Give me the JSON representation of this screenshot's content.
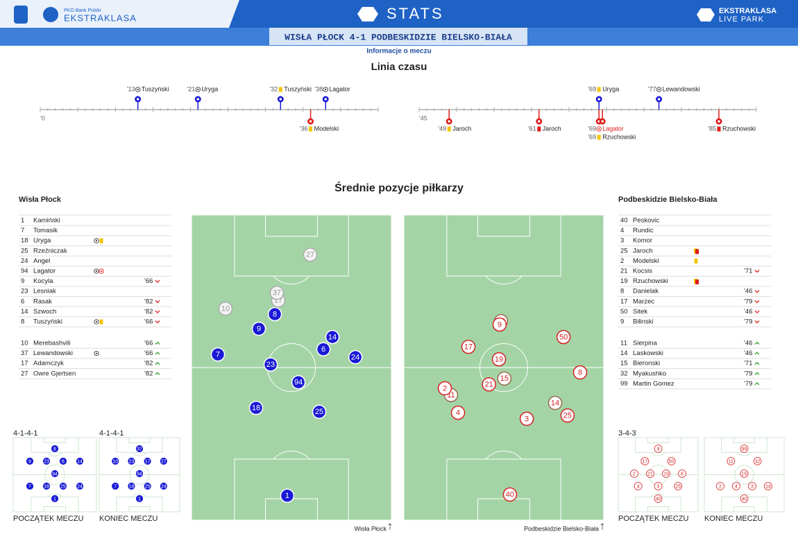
{
  "header": {
    "bank": "PKO Bank Polski",
    "league": "EKSTRAKLASA",
    "section": "STATS",
    "park_league": "EKSTRAKLASA",
    "park": "LIVE PARK",
    "match": "WISŁA PŁOCK 4-1 PODBESKIDZIE BIELSKO-BIAŁA",
    "info": "Informacje o meczu"
  },
  "timeline": {
    "title": "Linia czasu",
    "colors": {
      "home": "#1a1ad6",
      "away": "#e01b1b"
    },
    "halves": [
      {
        "start_label": "'0",
        "range": [
          0,
          45
        ],
        "events": [
          {
            "minute": {
              "value": 13,
              "label": "'13"
            },
            "player": "Tuszyński",
            "icon": "goal",
            "side": "home"
          },
          {
            "minute": {
              "value": 21,
              "label": "'21"
            },
            "player": "Uryga",
            "icon": "goal",
            "side": "home"
          },
          {
            "minute": {
              "value": 32,
              "label": "'32"
            },
            "player": "Tuszyński",
            "icon": "yellow",
            "side": "home"
          },
          {
            "minute": {
              "value": 38,
              "label": "'38"
            },
            "player": "Lagator",
            "icon": "goal",
            "side": "home"
          },
          {
            "minute": {
              "value": 36,
              "label": "'36"
            },
            "player": "Modelski",
            "icon": "yellow",
            "side": "away"
          }
        ]
      },
      {
        "start_label": "'45",
        "range": [
          45,
          90
        ],
        "events": [
          {
            "minute": {
              "value": 69,
              "label": "'69"
            },
            "player": "Uryga",
            "icon": "yellow",
            "side": "home"
          },
          {
            "minute": {
              "value": 77,
              "label": "'77"
            },
            "player": "Lewandowski",
            "icon": "goal",
            "side": "home"
          },
          {
            "minute": {
              "value": 49,
              "label": "'49"
            },
            "player": "Jaroch",
            "icon": "yellow",
            "side": "away"
          },
          {
            "minute": {
              "value": 61,
              "label": "'61"
            },
            "player": "Jaroch",
            "icon": "red",
            "side": "away"
          },
          {
            "minute": {
              "value": 69,
              "label": "'69"
            },
            "player": "Lagator",
            "icon": "own-goal",
            "side": "away"
          },
          {
            "minute": {
              "value": 69,
              "label": "'69"
            },
            "player": "Rzuchowski",
            "icon": "yellow",
            "side": "away"
          },
          {
            "minute": {
              "value": 85,
              "label": "'85"
            },
            "player": "Rzuchowski",
            "icon": "red",
            "side": "away"
          }
        ]
      }
    ]
  },
  "positions": {
    "title": "Średnie pozycje piłkarzy",
    "teams": [
      {
        "name": "Wisła Płock",
        "footer": "Wisła Płock",
        "color": "#1a1ad6",
        "starters": [
          {
            "number": 1,
            "name": "Kamiński"
          },
          {
            "number": 7,
            "name": "Tomasik"
          },
          {
            "number": 18,
            "name": "Uryga",
            "icons": [
              "goal",
              "yellow"
            ]
          },
          {
            "number": 25,
            "name": "Rzeźniczak"
          },
          {
            "number": 24,
            "name": "Angel"
          },
          {
            "number": 94,
            "name": "Lagator",
            "icons": [
              "goal",
              "own-goal"
            ]
          },
          {
            "number": 9,
            "name": "Kocyla",
            "sub": "'66",
            "dir": "out"
          },
          {
            "number": 23,
            "name": "Lesniak"
          },
          {
            "number": 6,
            "name": "Rasak",
            "sub": "'82",
            "dir": "out"
          },
          {
            "number": 14,
            "name": "Szwoch",
            "sub": "'82",
            "dir": "out"
          },
          {
            "number": 8,
            "name": "Tuszyński",
            "icons": [
              "goal",
              "yellow"
            ],
            "sub": "'66",
            "dir": "out"
          }
        ],
        "subs": [
          {
            "number": 10,
            "name": "Merebashvili",
            "sub": "'66",
            "dir": "in"
          },
          {
            "number": 37,
            "name": "Lewandowski",
            "icons": [
              "goal"
            ],
            "sub": "'66",
            "dir": "in"
          },
          {
            "number": 17,
            "name": "Adamczyk",
            "sub": "'82",
            "dir": "in"
          },
          {
            "number": 27,
            "name": "Owre Gjertsen",
            "sub": "'82",
            "dir": "in"
          }
        ],
        "players": [
          {
            "number": 27,
            "x": 59.4,
            "y": 13
          },
          {
            "number": 17,
            "x": 43.4,
            "y": 28
          },
          {
            "number": 37,
            "x": 42.7,
            "y": 25.5
          },
          {
            "number": 10,
            "x": 17,
            "y": 30.7
          },
          {
            "number": 8,
            "x": 41.7,
            "y": 32.5
          },
          {
            "number": 9,
            "x": 33.7,
            "y": 37.3
          },
          {
            "number": 14,
            "x": 70.5,
            "y": 40
          },
          {
            "number": 6,
            "x": 66,
            "y": 44
          },
          {
            "number": 7,
            "x": 13.2,
            "y": 45.7
          },
          {
            "number": 24,
            "x": 82,
            "y": 46.6
          },
          {
            "number": 23,
            "x": 39.6,
            "y": 49
          },
          {
            "number": 94,
            "x": 53.5,
            "y": 54.8
          },
          {
            "number": 18,
            "x": 32.3,
            "y": 63.2
          },
          {
            "number": 25,
            "x": 63.9,
            "y": 64.5
          },
          {
            "number": 1,
            "x": 47.9,
            "y": 92
          }
        ],
        "lineups": [
          {
            "formation": "4-1-4-1",
            "caption": "POCZĄTEK MECZU",
            "rows": [
              [
                8
              ],
              [
                9,
                23,
                6,
                14
              ],
              [
                94
              ],
              [
                7,
                18,
                25,
                24
              ],
              [
                1
              ]
            ]
          },
          {
            "formation": "4-1-4-1",
            "caption": "KONIEC MECZU",
            "rows": [
              [
                37
              ],
              [
                10,
                23,
                17,
                27
              ],
              [
                94
              ],
              [
                7,
                18,
                25,
                24
              ],
              [
                1
              ]
            ]
          }
        ]
      },
      {
        "name": "Podbeskidzie Bielsko-Biała",
        "footer": "Podbeskidzie Bielsko-Biała",
        "color": "#d42020",
        "starters": [
          {
            "number": 40,
            "name": "Peskovic"
          },
          {
            "number": 4,
            "name": "Rundic"
          },
          {
            "number": 3,
            "name": "Komor"
          },
          {
            "number": 25,
            "name": "Jaroch",
            "icons": [
              "second-yellow"
            ]
          },
          {
            "number": 2,
            "name": "Modelski",
            "icons": [
              "yellow"
            ]
          },
          {
            "number": 21,
            "name": "Kocsis",
            "sub": "'71",
            "dir": "out"
          },
          {
            "number": 19,
            "name": "Rzuchowski",
            "icons": [
              "second-yellow"
            ]
          },
          {
            "number": 8,
            "name": "Danielak",
            "sub": "'46",
            "dir": "out"
          },
          {
            "number": 17,
            "name": "Marzec",
            "sub": "'79",
            "dir": "out"
          },
          {
            "number": 50,
            "name": "Sitek",
            "sub": "'46",
            "dir": "out"
          },
          {
            "number": 9,
            "name": "Bilinski",
            "sub": "'79",
            "dir": "out"
          }
        ],
        "subs": [
          {
            "number": 11,
            "name": "Sierpina",
            "sub": "'46",
            "dir": "in"
          },
          {
            "number": 14,
            "name": "Laskowski",
            "sub": "'46",
            "dir": "in"
          },
          {
            "number": 15,
            "name": "Bieronski",
            "sub": "'71",
            "dir": "in"
          },
          {
            "number": 32,
            "name": "Myakushko",
            "sub": "'79",
            "dir": "in"
          },
          {
            "number": 99,
            "name": "Martin Gomez",
            "sub": "'79",
            "dir": "in"
          }
        ],
        "players": [
          {
            "number": 32,
            "x": 48.6,
            "y": 34.8
          },
          {
            "number": 9,
            "x": 47.9,
            "y": 35.9
          },
          {
            "number": 50,
            "x": 79.9,
            "y": 40
          },
          {
            "number": 17,
            "x": 32.3,
            "y": 43.2
          },
          {
            "number": 19,
            "x": 47.6,
            "y": 47.3
          },
          {
            "number": 8,
            "x": 88.2,
            "y": 51.6
          },
          {
            "number": 15,
            "x": 50.3,
            "y": 53.6
          },
          {
            "number": 21,
            "x": 42.6,
            "y": 55.5
          },
          {
            "number": 11,
            "x": 23.6,
            "y": 59
          },
          {
            "number": 2,
            "x": 20.5,
            "y": 56.8
          },
          {
            "number": 14,
            "x": 75.7,
            "y": 61.6
          },
          {
            "number": 4,
            "x": 27.1,
            "y": 64.8
          },
          {
            "number": 25,
            "x": 81.9,
            "y": 65.7
          },
          {
            "number": 3,
            "x": 61.5,
            "y": 66.8
          },
          {
            "number": 40,
            "x": 53.1,
            "y": 91.6
          }
        ],
        "lineups": [
          {
            "formation": "3-4-3",
            "caption": "POCZĄTEK MECZU",
            "rows": [
              [
                9
              ],
              [
                17,
                50
              ],
              [
                2,
                21,
                19,
                8
              ],
              [
                4,
                3,
                25
              ],
              [
                40
              ]
            ]
          },
          {
            "caption": "KONIEC MECZU",
            "rows": [
              [
                99
              ],
              [
                11,
                32
              ],
              [
                15
              ],
              [
                2,
                4,
                3,
                14
              ],
              [
                40
              ]
            ]
          }
        ]
      }
    ]
  }
}
